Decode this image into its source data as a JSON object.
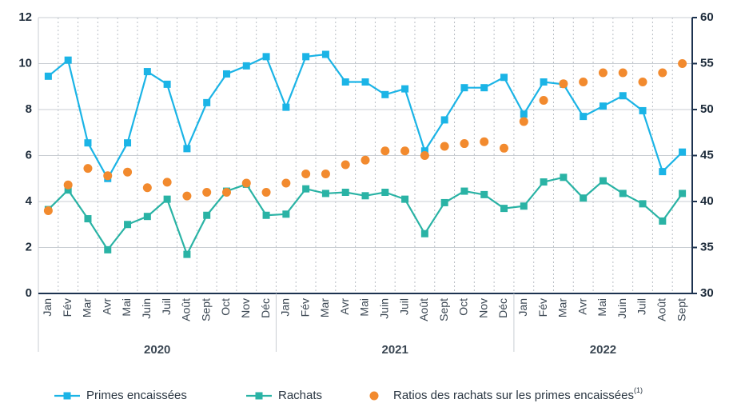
{
  "chart_data": {
    "type": "line",
    "groups": [
      {
        "name": "2020",
        "categories": [
          "Jan",
          "Fév",
          "Mar",
          "Avr",
          "Mai",
          "Juin",
          "Juil",
          "Août",
          "Sept",
          "Oct",
          "Nov",
          "Déc"
        ]
      },
      {
        "name": "2021",
        "categories": [
          "Jan",
          "Fév",
          "Mar",
          "Avr",
          "Mai",
          "Juin",
          "Juil",
          "Août",
          "Sept",
          "Oct",
          "Nov",
          "Déc"
        ]
      },
      {
        "name": "2022",
        "categories": [
          "Jan",
          "Fév",
          "Mar",
          "Avr",
          "Mai",
          "Juin",
          "Juil",
          "Août",
          "Sept"
        ]
      }
    ],
    "series": [
      {
        "name": "Primes encaissées",
        "color": "#1bb4e6",
        "marker": "square",
        "values": [
          9.45,
          10.15,
          6.55,
          5.0,
          6.55,
          9.65,
          9.1,
          6.3,
          8.3,
          9.55,
          9.9,
          10.3,
          8.1,
          10.3,
          10.4,
          9.2,
          9.2,
          8.65,
          8.9,
          6.2,
          7.55,
          8.95,
          8.95,
          9.4,
          7.8,
          9.2,
          9.1,
          7.7,
          8.15,
          8.6,
          7.95,
          5.3,
          6.15
        ]
      },
      {
        "name": "Rachats",
        "color": "#2ab3a5",
        "marker": "square",
        "values": [
          3.65,
          4.5,
          3.25,
          1.9,
          3.0,
          3.35,
          4.1,
          1.7,
          3.4,
          4.45,
          4.75,
          3.4,
          3.45,
          4.55,
          4.35,
          4.4,
          4.25,
          4.4,
          4.1,
          2.6,
          3.95,
          4.45,
          4.3,
          3.7,
          3.8,
          4.85,
          5.05,
          4.15,
          4.9,
          4.35,
          3.9,
          3.15,
          4.35
        ]
      },
      {
        "name": "Ratios des rachats sur les primes encaissées",
        "note_ref": "(1)",
        "color": "#f28a2e",
        "marker": "circle",
        "axis": "y2",
        "values": [
          39,
          41.8,
          43.6,
          42.8,
          43.2,
          41.5,
          42.1,
          40.6,
          41,
          41,
          42,
          41,
          42,
          43,
          43,
          44,
          44.5,
          45.5,
          45.5,
          45,
          46,
          46.3,
          46.5,
          45.8,
          48.7,
          51,
          52.8,
          53,
          54,
          54,
          53,
          54,
          55
        ]
      }
    ],
    "ylim": [
      0,
      12
    ],
    "yticks": [
      0,
      2,
      4,
      6,
      8,
      10,
      12
    ],
    "y2lim": [
      30,
      60
    ],
    "y2ticks": [
      30,
      35,
      40,
      45,
      50,
      55,
      60
    ],
    "grid": true,
    "legend": "bottom"
  }
}
